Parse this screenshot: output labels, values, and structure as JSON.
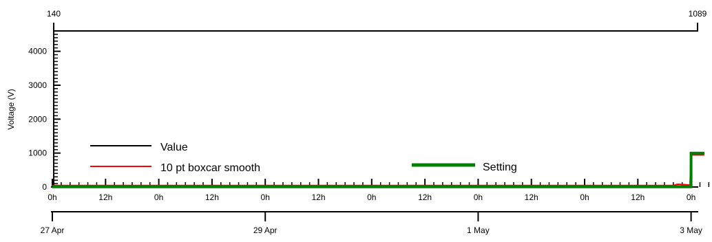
{
  "chart_data": {
    "type": "line",
    "title": "",
    "ylabel": "Voltage (V)",
    "xlabel": "",
    "ylim": [
      0,
      4600
    ],
    "y_ticks": [
      "0",
      "1000",
      "2000",
      "3000",
      "4000"
    ],
    "x_hour_ticks": [
      "0h",
      "12h",
      "0h",
      "12h",
      "0h",
      "12h",
      "0h",
      "12h",
      "0h",
      "12h",
      "0h",
      "12h",
      "0h"
    ],
    "x_date_ticks": [
      "27 Apr",
      "29 Apr",
      "1 May",
      "3 May"
    ],
    "top_axis_labels": [
      "140",
      "1089"
    ],
    "legend": [
      {
        "label": "Value",
        "color": "#000000"
      },
      {
        "label": "10 pt boxcar smooth",
        "color": "#ff0000"
      },
      {
        "label": "Setting",
        "color": "#008000"
      }
    ],
    "series": [
      {
        "name": "Value",
        "color": "#000000",
        "points": [
          [
            0,
            0
          ],
          [
            144,
            0
          ],
          [
            144,
            1000
          ],
          [
            147,
            1000
          ]
        ]
      },
      {
        "name": "10 pt boxcar smooth",
        "color": "#ff0000",
        "points": [
          [
            0,
            40
          ],
          [
            20,
            40
          ],
          [
            60,
            40
          ],
          [
            100,
            40
          ],
          [
            140,
            40
          ],
          [
            141,
            80
          ],
          [
            143,
            60
          ],
          [
            143.8,
            50
          ],
          [
            144,
            950
          ],
          [
            147,
            950
          ]
        ]
      },
      {
        "name": "Setting",
        "color": "#008000",
        "points": [
          [
            0,
            5
          ],
          [
            144,
            5
          ],
          [
            144,
            1000
          ],
          [
            147,
            1000
          ]
        ]
      }
    ],
    "grid": false,
    "legend_placement": "inside-bottom"
  }
}
